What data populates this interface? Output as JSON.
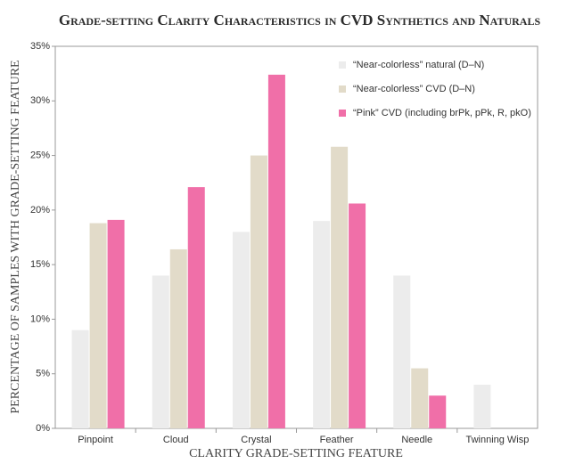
{
  "chart_data": {
    "type": "bar",
    "title": "Grade-setting Clarity Characteristics in CVD Synthetics and Naturals",
    "x_label": "CLARITY GRADE-SETTING FEATURE",
    "y_label": "PERCENTAGE OF SAMPLES WITH GRADE-SETTING FEATURE",
    "categories": [
      "Pinpoint",
      "Cloud",
      "Crystal",
      "Feather",
      "Needle",
      "Twinning Wisp"
    ],
    "series": [
      {
        "name": "“Near-colorless” natural (D–N)",
        "color": "#ececec",
        "values": [
          9,
          14,
          18,
          19,
          14,
          4
        ]
      },
      {
        "name": "“Near-colorless” CVD (D–N)",
        "color": "#e2dbc9",
        "values": [
          18.8,
          16.4,
          25,
          25.8,
          5.5,
          null
        ]
      },
      {
        "name": "“Pink” CVD (including brPk, pPk, R, pkO)",
        "color": "#f06fa8",
        "values": [
          19.1,
          22.1,
          32.4,
          20.6,
          3,
          null
        ]
      }
    ],
    "ylim": [
      0,
      35
    ],
    "yticks": [
      {
        "value": 0,
        "label": "0%"
      },
      {
        "value": 5,
        "label": "5%"
      },
      {
        "value": 10,
        "label": "10%"
      },
      {
        "value": 15,
        "label": "15%"
      },
      {
        "value": 20,
        "label": "20%"
      },
      {
        "value": 25,
        "label": "25%"
      },
      {
        "value": 30,
        "label": "30%"
      },
      {
        "value": 35,
        "label": "35%"
      }
    ],
    "legend": "top-right"
  }
}
